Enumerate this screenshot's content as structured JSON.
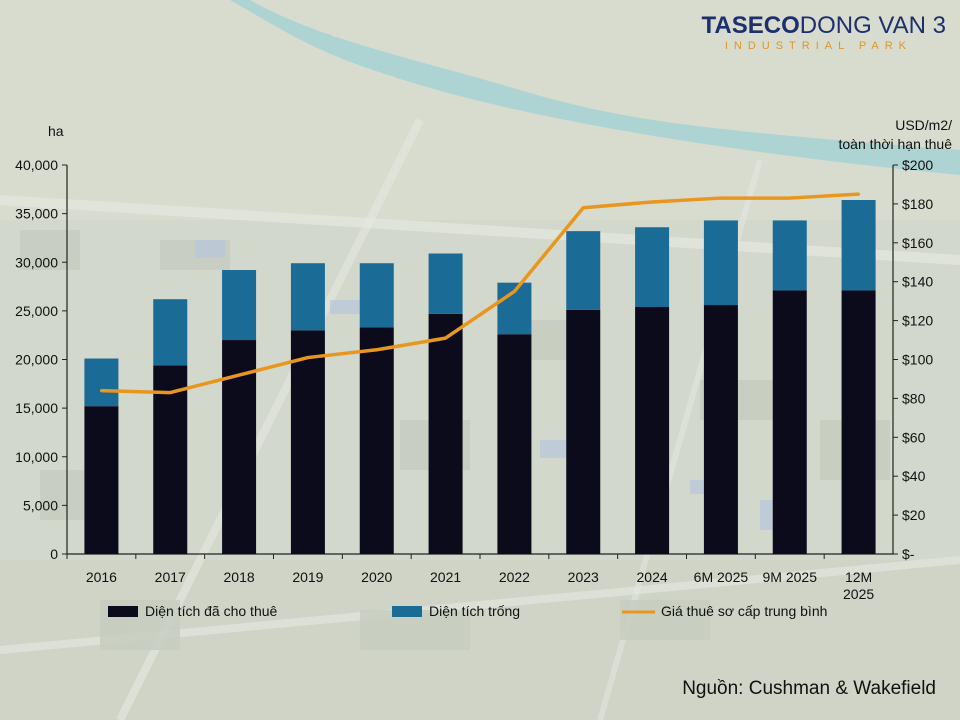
{
  "logo": {
    "brand_part1": "TASECO",
    "brand_part2": "DONG VAN 3",
    "subtitle": "INDUSTRIAL PARK"
  },
  "source": "Nguồn: Cushman & Wakefield",
  "colors": {
    "leased": "#0b0b1c",
    "vacant": "#1a6b96",
    "price_line": "#e8961e",
    "axis": "#222222"
  },
  "chart_data": {
    "type": "bar",
    "stacked": true,
    "categories": [
      "2016",
      "2017",
      "2018",
      "2019",
      "2020",
      "2021",
      "2022",
      "2023",
      "2024",
      "6M 2025",
      "9M 2025",
      "12M 2025"
    ],
    "series": [
      {
        "name": "Diện tích đã cho thuê",
        "axis": "left",
        "values": [
          15200,
          19400,
          22000,
          23000,
          23300,
          24700,
          22600,
          25100,
          25400,
          25600,
          27100,
          27100
        ]
      },
      {
        "name": "Diện tích trống",
        "axis": "left",
        "values": [
          4900,
          6800,
          7200,
          6900,
          6600,
          6200,
          5300,
          8100,
          8200,
          8700,
          7200,
          9300
        ]
      },
      {
        "name": "Giá thuê sơ cấp trung bình",
        "axis": "right",
        "type": "line",
        "values": [
          84,
          83,
          92,
          101,
          105,
          111,
          135,
          178,
          181,
          183,
          183,
          185
        ]
      }
    ],
    "y_left": {
      "label": "ha",
      "ylim": [
        0,
        40000
      ],
      "ticks": [
        "0",
        "5,000",
        "10,000",
        "15,000",
        "20,000",
        "25,000",
        "30,000",
        "35,000",
        "40,000"
      ]
    },
    "y_right": {
      "label_line1": "USD/m2/",
      "label_line2": "toàn thời hạn thuê",
      "ylim": [
        0,
        200
      ],
      "ticks": [
        "$-",
        "$20",
        "$40",
        "$60",
        "$80",
        "$100",
        "$120",
        "$140",
        "$160",
        "$180",
        "$200"
      ]
    },
    "legend_position": "bottom",
    "grid": false
  }
}
